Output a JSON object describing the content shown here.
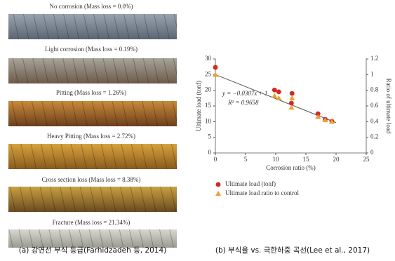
{
  "panel_a": {
    "labels": [
      "No corrosion (Mass loss = 0.0%)",
      "Light corrosion (Mass loss = 0.19%)",
      "Pitting (Mass loss = 1.26%)",
      "Heavy Pitting (Mass loss = 2.72%)",
      "Cross section loss (Mass loss = 8.38%)",
      "Fracture (Mass loss = 21.34%)"
    ],
    "caption": "(a) 강연선 부식 등급(Farhidzadeh 등, 2014)"
  },
  "chart_data": {
    "type": "scatter",
    "caption": "(b) 부식율 vs. 극한하중 곡선(Lee et al., 2017)",
    "x_label": "Corrosion ratio (%)",
    "y_label": "Ultimate load (tonf)",
    "y2_label": "Ratio of ultimate load",
    "annotations": [
      "y = −0.0307x + 1",
      "R² = 0.9658"
    ],
    "xlim": [
      0,
      25
    ],
    "xticks": [
      0,
      5,
      10,
      15,
      20,
      25
    ],
    "ylim": [
      0,
      30
    ],
    "yticks": [
      0,
      5,
      10,
      15,
      20,
      25,
      30
    ],
    "y2lim": [
      0,
      1.2
    ],
    "y2ticks": [
      0,
      0.2,
      0.4,
      0.6,
      0.8,
      1,
      1.2
    ],
    "series": [
      {
        "name": "Ultimate load (tonf)",
        "color": "#d7261e",
        "marker": "circle",
        "x": [
          0,
          9.8,
          10.5,
          12.7,
          12.6,
          17,
          18.2,
          19.3
        ],
        "values": [
          27.3,
          20.1,
          19.5,
          19.0,
          15.9,
          12.5,
          10.7,
          10.1
        ]
      },
      {
        "name": "Ultimate load ratio to control",
        "color": "#f0a030",
        "marker": "triangle",
        "axis": "y2",
        "x": [
          0,
          9.8,
          10.5,
          12.7,
          12.6,
          17,
          18.2,
          19.3
        ],
        "values": [
          1.0,
          0.73,
          0.7,
          0.7,
          0.58,
          0.46,
          0.42,
          0.4
        ]
      },
      {
        "color": "#555555",
        "marker": "line",
        "axis": "y2",
        "x": [
          0,
          20
        ],
        "values": [
          1,
          0.386
        ]
      }
    ]
  }
}
